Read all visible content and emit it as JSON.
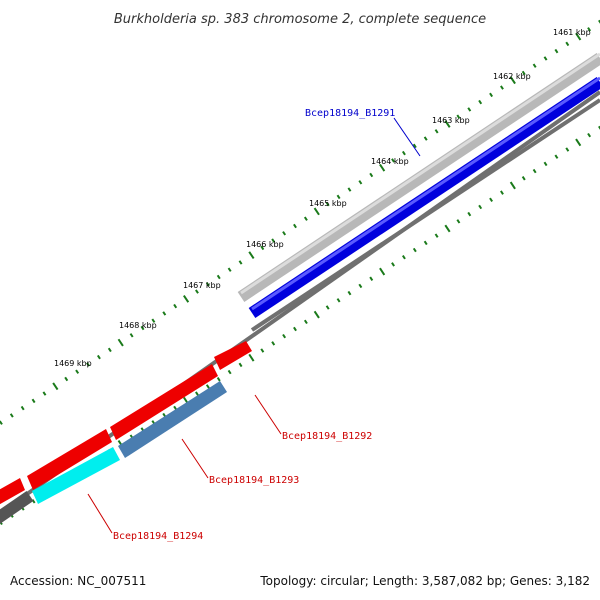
{
  "title": "Burkholderia sp. 383 chromosome 2, complete sequence",
  "ticks": [
    "1461 kbp",
    "1462 kbp",
    "1463 kbp",
    "1464 kbp",
    "1465 kbp",
    "1466 kbp",
    "1467 kbp",
    "1468 kbp",
    "1469 kbp"
  ],
  "genes": [
    {
      "name": "Bcep18194_B1291",
      "color": "#0000cc"
    },
    {
      "name": "Bcep18194_B1292",
      "color": "#cc0000"
    },
    {
      "name": "Bcep18194_B1293",
      "color": "#cc0000"
    },
    {
      "name": "Bcep18194_B1294",
      "color": "#cc0000"
    }
  ],
  "colors": {
    "forward_cds": "#0000ee",
    "reverse_cds": "#ee0000",
    "trna_like": "#4a7db0",
    "cyan_feature": "#00e5ee",
    "backbone": "#777777",
    "gc_track": "#bbbbbb",
    "tick_marks": "#1a7a1a"
  },
  "footer": {
    "accession": "Accession: NC_007511",
    "summary": "Topology: circular; Length: 3,587,082 bp; Genes: 3,182"
  }
}
